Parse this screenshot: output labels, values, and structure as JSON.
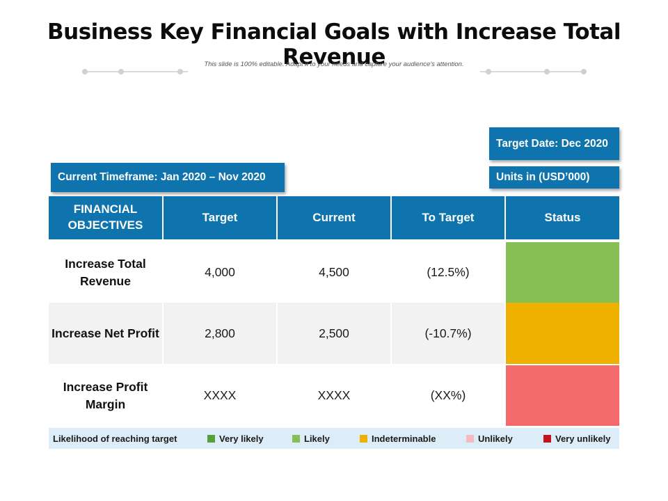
{
  "page": {
    "title": "Business Key Financial Goals with Increase Total Revenue",
    "subtitle": "This slide is 100% editable. Adapt it to your needs and capture your audience's attention."
  },
  "info": {
    "target_date": "Target Date: Dec 2020",
    "current_timeframe": "Current Timeframe: Jan 2020 – Nov 2020",
    "units": "Units in (USD’000)"
  },
  "table": {
    "headers": [
      "FINANCIAL OBJECTIVES",
      "Target",
      "Current",
      "To Target",
      "Status"
    ],
    "rows": [
      {
        "objective": "Increase Total Revenue",
        "target": "4,000",
        "current": "4,500",
        "to_target": "(12.5%)",
        "status_color": "#86bf56"
      },
      {
        "objective": "Increase Net Profit",
        "target": "2,800",
        "current": "2,500",
        "to_target": "(-10.7%)",
        "status_color": "#eeb100"
      },
      {
        "objective": "Increase Profit Margin",
        "target": "XXXX",
        "current": "XXXX",
        "to_target": "(XX%)",
        "status_color": "#f46a6a"
      }
    ]
  },
  "legend": {
    "title": "Likelihood of reaching target",
    "items": [
      {
        "label": "Very likely",
        "color": "#5a9e3a"
      },
      {
        "label": "Likely",
        "color": "#86bf56"
      },
      {
        "label": "Indeterminable",
        "color": "#eeb100"
      },
      {
        "label": "Unlikely",
        "color": "#f7b9c0"
      },
      {
        "label": "Very unlikely",
        "color": "#c1121f"
      }
    ]
  },
  "colors": {
    "accent": "#0f74ad",
    "row_alt": "#f2f2f2",
    "legend_bg": "#dcedf7"
  }
}
